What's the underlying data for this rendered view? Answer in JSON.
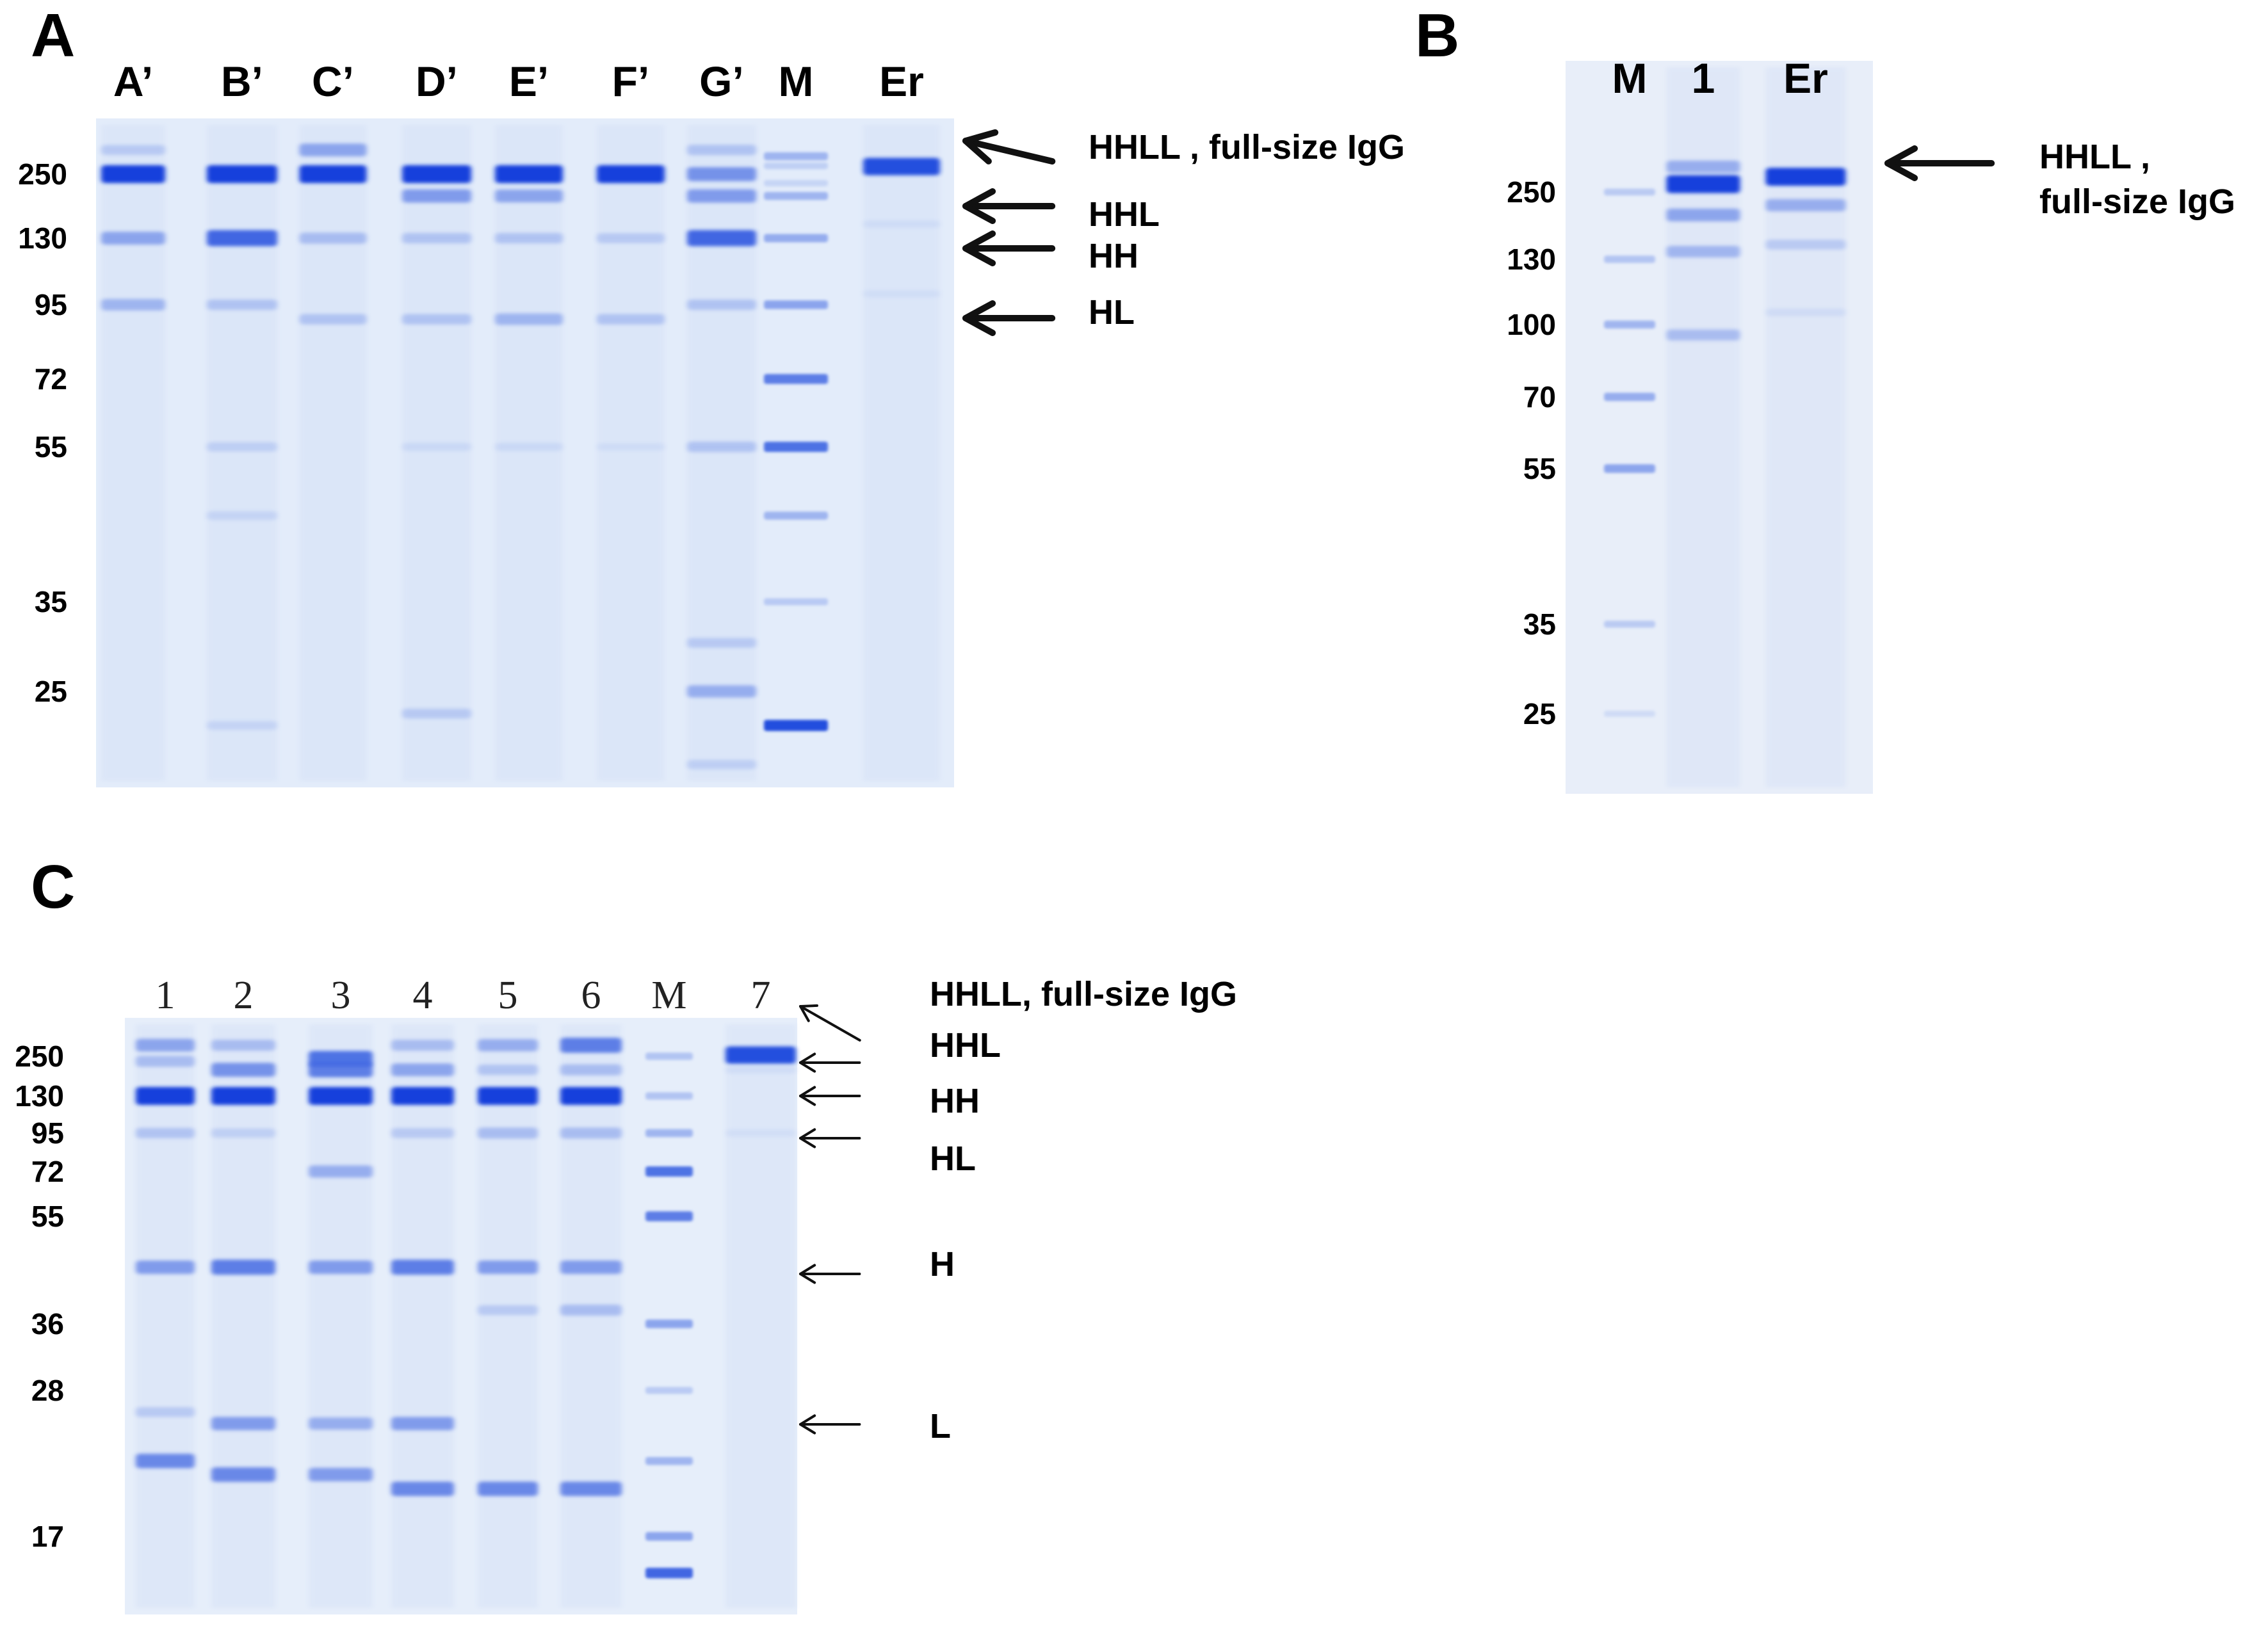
{
  "figure": {
    "panels": [
      {
        "id": "A",
        "label": "A",
        "gel": {
          "color": "#e3ecfa"
        },
        "lanes": [
          {
            "label": "A’",
            "type": "sample",
            "bands": [
              {
                "mw": 250,
                "i": 1.0
              },
              {
                "mw": 130,
                "i": 0.55
              },
              {
                "mw": 95,
                "i": 0.45
              },
              {
                "mw": 320,
                "i": 0.3
              }
            ]
          },
          {
            "label": "B’",
            "type": "sample",
            "bands": [
              {
                "mw": 250,
                "i": 1.0
              },
              {
                "mw": 130,
                "i": 0.85
              },
              {
                "mw": 95,
                "i": 0.35
              },
              {
                "mw": 55,
                "i": 0.25
              },
              {
                "mw": 45,
                "i": 0.2
              },
              {
                "mw": 22,
                "i": 0.2
              }
            ]
          },
          {
            "label": "C’",
            "type": "sample",
            "bands": [
              {
                "mw": 320,
                "i": 0.55
              },
              {
                "mw": 250,
                "i": 1.0
              },
              {
                "mw": 130,
                "i": 0.4
              },
              {
                "mw": 90,
                "i": 0.35
              }
            ]
          },
          {
            "label": "D’",
            "type": "sample",
            "bands": [
              {
                "mw": 250,
                "i": 1.0
              },
              {
                "mw": 200,
                "i": 0.6
              },
              {
                "mw": 130,
                "i": 0.35
              },
              {
                "mw": 90,
                "i": 0.35
              },
              {
                "mw": 55,
                "i": 0.15
              },
              {
                "mw": 23,
                "i": 0.3
              }
            ]
          },
          {
            "label": "E’",
            "type": "sample",
            "bands": [
              {
                "mw": 250,
                "i": 1.0
              },
              {
                "mw": 200,
                "i": 0.55
              },
              {
                "mw": 130,
                "i": 0.35
              },
              {
                "mw": 90,
                "i": 0.45
              },
              {
                "mw": 55,
                "i": 0.15
              }
            ]
          },
          {
            "label": "F’",
            "type": "sample",
            "bands": [
              {
                "mw": 250,
                "i": 1.0
              },
              {
                "mw": 130,
                "i": 0.3
              },
              {
                "mw": 90,
                "i": 0.35
              },
              {
                "mw": 55,
                "i": 0.1
              }
            ]
          },
          {
            "label": "G’",
            "type": "sample",
            "bands": [
              {
                "mw": 320,
                "i": 0.35
              },
              {
                "mw": 250,
                "i": 0.65
              },
              {
                "mw": 200,
                "i": 0.6
              },
              {
                "mw": 130,
                "i": 0.85
              },
              {
                "mw": 95,
                "i": 0.35
              },
              {
                "mw": 55,
                "i": 0.35
              },
              {
                "mw": 30,
                "i": 0.3
              },
              {
                "mw": 25,
                "i": 0.5
              },
              {
                "mw": 19,
                "i": 0.25
              }
            ]
          },
          {
            "label": "M",
            "type": "marker"
          },
          {
            "label": "Er",
            "type": "sample",
            "bands": [
              {
                "mw": 270,
                "i": 0.95
              },
              {
                "mw": 150,
                "i": 0.1
              },
              {
                "mw": 100,
                "i": 0.08
              }
            ]
          }
        ],
        "markers": [
          {
            "label": "250",
            "mw": 250
          },
          {
            "label": "130",
            "mw": 130
          },
          {
            "label": "95",
            "mw": 95
          },
          {
            "label": "72",
            "mw": 72
          },
          {
            "label": "55",
            "mw": 55
          },
          {
            "label": "35",
            "mw": 35
          },
          {
            "label": "25",
            "mw": 25
          }
        ],
        "annotations": [
          {
            "text": "HHLL , full-size IgG",
            "mw": 300
          },
          {
            "text": "HHL",
            "mw": 200
          },
          {
            "text": "HH",
            "mw": 130
          },
          {
            "text": "HL",
            "mw": 95
          }
        ]
      },
      {
        "id": "B",
        "label": "B",
        "gel": {
          "color": "#e8eef9"
        },
        "lanes": [
          {
            "label": "M",
            "type": "marker"
          },
          {
            "label": "1",
            "type": "sample",
            "bands": [
              {
                "mw": 320,
                "i": 0.5
              },
              {
                "mw": 270,
                "i": 1.0
              },
              {
                "mw": 200,
                "i": 0.55
              },
              {
                "mw": 140,
                "i": 0.45
              },
              {
                "mw": 95,
                "i": 0.4
              }
            ]
          },
          {
            "label": "Er",
            "type": "sample",
            "bands": [
              {
                "mw": 290,
                "i": 1.0
              },
              {
                "mw": 220,
                "i": 0.5
              },
              {
                "mw": 150,
                "i": 0.3
              },
              {
                "mw": 105,
                "i": 0.12
              }
            ]
          }
        ],
        "markers": [
          {
            "label": "250",
            "mw": 250
          },
          {
            "label": "130",
            "mw": 130
          },
          {
            "label": "100",
            "mw": 100
          },
          {
            "label": "70",
            "mw": 70
          },
          {
            "label": "55",
            "mw": 55
          },
          {
            "label": "35",
            "mw": 35
          },
          {
            "label": "25",
            "mw": 25
          }
        ],
        "annotations": [
          {
            "text": "HHLL ,",
            "mw": 290
          },
          {
            "text": "full-size IgG",
            "mw": 290
          }
        ]
      },
      {
        "id": "C",
        "label": "C",
        "gel": {
          "color": "#e6eefa"
        },
        "lanes": [
          {
            "label": "1",
            "type": "sample",
            "bands": [
              {
                "mw": 300,
                "i": 0.55
              },
              {
                "mw": 230,
                "i": 0.4
              },
              {
                "mw": 130,
                "i": 1.0
              },
              {
                "mw": 95,
                "i": 0.35
              },
              {
                "mw": 45,
                "i": 0.6
              },
              {
                "mw": 26,
                "i": 0.3
              },
              {
                "mw": 22,
                "i": 0.7
              }
            ]
          },
          {
            "label": "2",
            "type": "sample",
            "bands": [
              {
                "mw": 300,
                "i": 0.4
              },
              {
                "mw": 200,
                "i": 0.65
              },
              {
                "mw": 130,
                "i": 1.0
              },
              {
                "mw": 95,
                "i": 0.25
              },
              {
                "mw": 45,
                "i": 0.75
              },
              {
                "mw": 25,
                "i": 0.6
              },
              {
                "mw": 21,
                "i": 0.7
              }
            ]
          },
          {
            "label": "3",
            "type": "sample",
            "bands": [
              {
                "mw": 240,
                "i": 0.8
              },
              {
                "mw": 200,
                "i": 0.75
              },
              {
                "mw": 130,
                "i": 1.0
              },
              {
                "mw": 72,
                "i": 0.5
              },
              {
                "mw": 45,
                "i": 0.6
              },
              {
                "mw": 25,
                "i": 0.5
              },
              {
                "mw": 21,
                "i": 0.6
              }
            ]
          },
          {
            "label": "4",
            "type": "sample",
            "bands": [
              {
                "mw": 300,
                "i": 0.4
              },
              {
                "mw": 200,
                "i": 0.55
              },
              {
                "mw": 130,
                "i": 1.0
              },
              {
                "mw": 95,
                "i": 0.3
              },
              {
                "mw": 45,
                "i": 0.75
              },
              {
                "mw": 25,
                "i": 0.6
              },
              {
                "mw": 20,
                "i": 0.7
              }
            ]
          },
          {
            "label": "5",
            "type": "sample",
            "bands": [
              {
                "mw": 300,
                "i": 0.5
              },
              {
                "mw": 200,
                "i": 0.35
              },
              {
                "mw": 130,
                "i": 1.0
              },
              {
                "mw": 95,
                "i": 0.4
              },
              {
                "mw": 45,
                "i": 0.6
              },
              {
                "mw": 38,
                "i": 0.3
              },
              {
                "mw": 20,
                "i": 0.7
              }
            ]
          },
          {
            "label": "6",
            "type": "sample",
            "bands": [
              {
                "mw": 300,
                "i": 0.75
              },
              {
                "mw": 200,
                "i": 0.4
              },
              {
                "mw": 130,
                "i": 1.0
              },
              {
                "mw": 95,
                "i": 0.4
              },
              {
                "mw": 45,
                "i": 0.6
              },
              {
                "mw": 38,
                "i": 0.4
              },
              {
                "mw": 20,
                "i": 0.7
              }
            ]
          },
          {
            "label": "M",
            "type": "marker"
          },
          {
            "label": "7",
            "type": "sample",
            "bands": [
              {
                "mw": 255,
                "i": 0.95
              },
              {
                "mw": 200,
                "i": 0.1
              },
              {
                "mw": 95,
                "i": 0.08
              }
            ]
          }
        ],
        "markers": [
          {
            "label": "250",
            "mw": 250
          },
          {
            "label": "130",
            "mw": 130
          },
          {
            "label": "95",
            "mw": 95
          },
          {
            "label": "72",
            "mw": 72
          },
          {
            "label": "55",
            "mw": 55
          },
          {
            "label": "36",
            "mw": 36
          },
          {
            "label": "28",
            "mw": 28
          },
          {
            "label": "17",
            "mw": 17
          }
        ],
        "annotations": [
          {
            "text": "HHLL, full-size IgG",
            "mw": 300
          },
          {
            "text": "HHL",
            "mw": 200
          },
          {
            "text": "HH",
            "mw": 130
          },
          {
            "text": "HL",
            "mw": 95
          },
          {
            "text": "H",
            "mw": 45
          },
          {
            "text": "L",
            "mw": 25
          }
        ]
      }
    ]
  }
}
